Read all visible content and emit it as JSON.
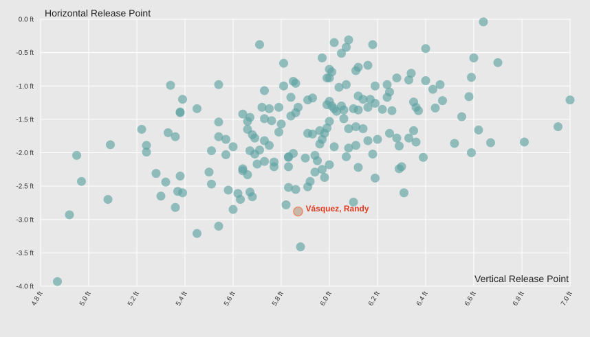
{
  "chart_data": {
    "type": "scatter",
    "title": "",
    "ylabel": "Horizontal Release Point",
    "xlabel": "Vertical Release Point",
    "xlim": [
      4.8,
      7.0
    ],
    "ylim": [
      -4.0,
      0.0
    ],
    "grid": true,
    "x_ticks": [
      {
        "v": 4.8,
        "label": "4.8 ft"
      },
      {
        "v": 5.0,
        "label": "5.0 ft"
      },
      {
        "v": 5.2,
        "label": "5.2 ft"
      },
      {
        "v": 5.4,
        "label": "5.4 ft"
      },
      {
        "v": 5.6,
        "label": "5.6 ft"
      },
      {
        "v": 5.8,
        "label": "5.8 ft"
      },
      {
        "v": 6.0,
        "label": "6.0 ft"
      },
      {
        "v": 6.2,
        "label": "6.2 ft"
      },
      {
        "v": 6.4,
        "label": "6.4 ft"
      },
      {
        "v": 6.6,
        "label": "6.6 ft"
      },
      {
        "v": 6.8,
        "label": "6.8 ft"
      },
      {
        "v": 7.0,
        "label": "7.0 ft"
      }
    ],
    "y_ticks": [
      {
        "v": 0.0,
        "label": "0.0 ft"
      },
      {
        "v": -0.5,
        "label": "-0.5 ft"
      },
      {
        "v": -1.0,
        "label": "-1.0 ft"
      },
      {
        "v": -1.5,
        "label": "-1.5 ft"
      },
      {
        "v": -2.0,
        "label": "-2.0 ft"
      },
      {
        "v": -2.5,
        "label": "-2.5 ft"
      },
      {
        "v": -3.0,
        "label": "-3.0 ft"
      },
      {
        "v": -3.5,
        "label": "-3.5 ft"
      },
      {
        "v": -4.0,
        "label": "-4.0 ft"
      }
    ],
    "highlight": {
      "name": "Vásquez, Randy",
      "x": 5.87,
      "y": -2.88,
      "color": "#e03a1e"
    },
    "series": [
      {
        "color": "#5fa3a3",
        "points": [
          [
            4.87,
            -3.93
          ],
          [
            4.92,
            -2.93
          ],
          [
            4.95,
            -2.04
          ],
          [
            4.97,
            -2.43
          ],
          [
            5.08,
            -2.7
          ],
          [
            5.09,
            -1.88
          ],
          [
            5.22,
            -1.65
          ],
          [
            5.24,
            -1.89
          ],
          [
            5.24,
            -1.99
          ],
          [
            5.28,
            -2.31
          ],
          [
            5.3,
            -2.65
          ],
          [
            5.32,
            -2.44
          ],
          [
            5.33,
            -1.7
          ],
          [
            5.34,
            -0.99
          ],
          [
            5.36,
            -2.82
          ],
          [
            5.36,
            -1.76
          ],
          [
            5.37,
            -2.58
          ],
          [
            5.38,
            -1.4
          ],
          [
            5.38,
            -1.39
          ],
          [
            5.38,
            -2.35
          ],
          [
            5.39,
            -1.2
          ],
          [
            5.39,
            -2.6
          ],
          [
            5.45,
            -1.34
          ],
          [
            5.45,
            -3.21
          ],
          [
            5.5,
            -2.29
          ],
          [
            5.51,
            -2.47
          ],
          [
            5.51,
            -1.97
          ],
          [
            5.54,
            -0.98
          ],
          [
            5.54,
            -1.54
          ],
          [
            5.54,
            -1.76
          ],
          [
            5.54,
            -3.1
          ],
          [
            5.57,
            -1.8
          ],
          [
            5.57,
            -2.03
          ],
          [
            5.58,
            -2.56
          ],
          [
            5.6,
            -1.91
          ],
          [
            5.6,
            -2.85
          ],
          [
            5.62,
            -2.61
          ],
          [
            5.63,
            -2.7
          ],
          [
            5.64,
            -2.24
          ],
          [
            5.64,
            -2.27
          ],
          [
            5.64,
            -1.42
          ],
          [
            5.66,
            -1.53
          ],
          [
            5.66,
            -1.65
          ],
          [
            5.66,
            -2.33
          ],
          [
            5.67,
            -1.47
          ],
          [
            5.67,
            -2.59
          ],
          [
            5.67,
            -1.97
          ],
          [
            5.68,
            -2.66
          ],
          [
            5.68,
            -1.73
          ],
          [
            5.69,
            -1.78
          ],
          [
            5.69,
            -2.02
          ],
          [
            5.7,
            -2.17
          ],
          [
            5.71,
            -0.38
          ],
          [
            5.71,
            -1.96
          ],
          [
            5.72,
            -1.32
          ],
          [
            5.73,
            -1.49
          ],
          [
            5.73,
            -1.07
          ],
          [
            5.73,
            -2.13
          ],
          [
            5.73,
            -1.82
          ],
          [
            5.75,
            -1.89
          ],
          [
            5.75,
            -1.34
          ],
          [
            5.76,
            -1.52
          ],
          [
            5.77,
            -2.14
          ],
          [
            5.77,
            -2.21
          ],
          [
            5.79,
            -1.32
          ],
          [
            5.79,
            -1.69
          ],
          [
            5.8,
            -1.57
          ],
          [
            5.81,
            -0.66
          ],
          [
            5.81,
            -1.0
          ],
          [
            5.82,
            -2.78
          ],
          [
            5.83,
            -2.52
          ],
          [
            5.83,
            -2.06
          ],
          [
            5.83,
            -2.21
          ],
          [
            5.83,
            -2.07
          ],
          [
            5.84,
            -1.17
          ],
          [
            5.84,
            -1.45
          ],
          [
            5.85,
            -0.93
          ],
          [
            5.85,
            -2.01
          ],
          [
            5.86,
            -0.96
          ],
          [
            5.86,
            -1.4
          ],
          [
            5.86,
            -2.55
          ],
          [
            5.87,
            -1.32
          ],
          [
            5.88,
            -3.41
          ],
          [
            5.9,
            -2.08
          ],
          [
            5.91,
            -1.21
          ],
          [
            5.91,
            -1.71
          ],
          [
            5.91,
            -2.51
          ],
          [
            5.92,
            -2.43
          ],
          [
            5.93,
            -1.72
          ],
          [
            5.93,
            -1.18
          ],
          [
            5.94,
            -2.04
          ],
          [
            5.94,
            -2.29
          ],
          [
            5.95,
            -2.12
          ],
          [
            5.96,
            -1.87
          ],
          [
            5.96,
            -1.67
          ],
          [
            5.97,
            -0.58
          ],
          [
            5.97,
            -1.8
          ],
          [
            5.97,
            -2.25
          ],
          [
            5.98,
            -2.37
          ],
          [
            5.98,
            -1.71
          ],
          [
            5.99,
            -0.88
          ],
          [
            5.99,
            -1.63
          ],
          [
            5.99,
            -1.28
          ],
          [
            6.0,
            -1.23
          ],
          [
            6.0,
            -0.88
          ],
          [
            6.0,
            -0.75
          ],
          [
            6.0,
            -1.53
          ],
          [
            6.0,
            -2.18
          ],
          [
            6.01,
            -1.3
          ],
          [
            6.01,
            -0.79
          ],
          [
            6.02,
            -0.35
          ],
          [
            6.02,
            -1.91
          ],
          [
            6.02,
            -1.34
          ],
          [
            6.03,
            -1.38
          ],
          [
            6.04,
            -1.02
          ],
          [
            6.05,
            -0.51
          ],
          [
            6.05,
            -1.3
          ],
          [
            6.06,
            -1.36
          ],
          [
            6.06,
            -1.49
          ],
          [
            6.07,
            -2.06
          ],
          [
            6.07,
            -0.42
          ],
          [
            6.07,
            -0.98
          ],
          [
            6.08,
            -0.31
          ],
          [
            6.08,
            -1.64
          ],
          [
            6.08,
            -1.93
          ],
          [
            6.1,
            -2.74
          ],
          [
            6.1,
            -1.34
          ],
          [
            6.11,
            -0.77
          ],
          [
            6.11,
            -1.61
          ],
          [
            6.11,
            -1.89
          ],
          [
            6.12,
            -1.36
          ],
          [
            6.12,
            -0.72
          ],
          [
            6.12,
            -1.15
          ],
          [
            6.12,
            -2.22
          ],
          [
            6.14,
            -1.64
          ],
          [
            6.14,
            -1.2
          ],
          [
            6.16,
            -0.69
          ],
          [
            6.16,
            -1.32
          ],
          [
            6.16,
            -1.82
          ],
          [
            6.17,
            -1.2
          ],
          [
            6.18,
            -0.38
          ],
          [
            6.18,
            -2.02
          ],
          [
            6.19,
            -2.38
          ],
          [
            6.19,
            -1.0
          ],
          [
            6.19,
            -1.26
          ],
          [
            6.2,
            -1.8
          ],
          [
            6.22,
            -1.35
          ],
          [
            6.24,
            -0.98
          ],
          [
            6.24,
            -1.17
          ],
          [
            6.25,
            -1.09
          ],
          [
            6.25,
            -1.71
          ],
          [
            6.26,
            -1.37
          ],
          [
            6.28,
            -0.88
          ],
          [
            6.28,
            -1.78
          ],
          [
            6.29,
            -2.24
          ],
          [
            6.29,
            -1.9
          ],
          [
            6.3,
            -2.21
          ],
          [
            6.31,
            -2.6
          ],
          [
            6.33,
            -1.78
          ],
          [
            6.33,
            -0.91
          ],
          [
            6.34,
            -0.81
          ],
          [
            6.35,
            -1.67
          ],
          [
            6.35,
            -1.24
          ],
          [
            6.36,
            -1.84
          ],
          [
            6.36,
            -1.32
          ],
          [
            6.37,
            -1.37
          ],
          [
            6.39,
            -2.07
          ],
          [
            6.4,
            -0.44
          ],
          [
            6.4,
            -0.92
          ],
          [
            6.43,
            -1.05
          ],
          [
            6.44,
            -1.33
          ],
          [
            6.46,
            -0.98
          ],
          [
            6.47,
            -1.22
          ],
          [
            6.52,
            -1.86
          ],
          [
            6.55,
            -1.46
          ],
          [
            6.58,
            -1.16
          ],
          [
            6.59,
            -0.87
          ],
          [
            6.59,
            -2.0
          ],
          [
            6.6,
            -0.58
          ],
          [
            6.62,
            -1.66
          ],
          [
            6.64,
            -0.04
          ],
          [
            6.67,
            -1.85
          ],
          [
            6.7,
            -0.65
          ],
          [
            6.81,
            -1.84
          ],
          [
            6.95,
            -1.61
          ],
          [
            7.0,
            -1.21
          ]
        ]
      }
    ]
  }
}
